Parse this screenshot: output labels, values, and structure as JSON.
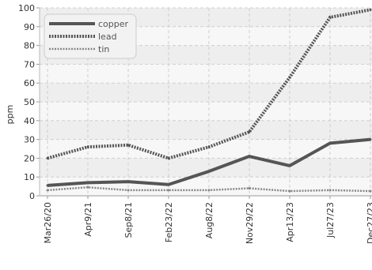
{
  "chart_data": {
    "type": "line",
    "ylabel": "ppm",
    "ylim": [
      0,
      100
    ],
    "yticks": [
      0,
      10,
      20,
      30,
      40,
      50,
      60,
      70,
      80,
      90,
      100
    ],
    "grid": true,
    "legend_position": "top-left",
    "categories": [
      "Mar26/20",
      "Apr9/21",
      "Sep8/21",
      "Feb23/22",
      "Aug8/22",
      "Nov29/22",
      "Apr13/23",
      "Jul27/23",
      "Dec27/23"
    ],
    "series": [
      {
        "name": "copper",
        "color": "#555555",
        "style": "solid",
        "values": [
          5.5,
          7,
          7.5,
          6,
          13,
          21,
          16,
          28,
          30
        ]
      },
      {
        "name": "lead",
        "color": "#555555",
        "style": "dotted-thick",
        "values": [
          20,
          26,
          27,
          20,
          26,
          34,
          63,
          95,
          99
        ]
      },
      {
        "name": "tin",
        "color": "#888888",
        "style": "dotted-thin",
        "values": [
          3,
          4.5,
          3,
          3,
          3,
          4,
          2.5,
          3,
          2.5
        ]
      }
    ]
  }
}
